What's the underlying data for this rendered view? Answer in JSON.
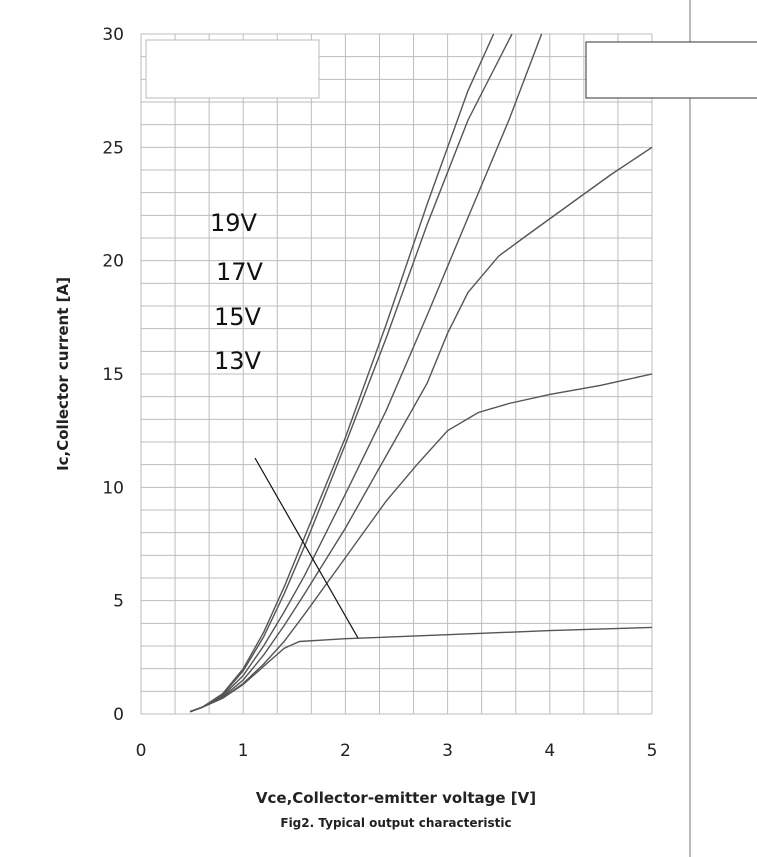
{
  "chart_data": {
    "type": "line",
    "title": "",
    "xlabel": "Vce,Collector-emitter voltage [V]",
    "ylabel": "Ic,Collector current [A]",
    "caption": "Fig2. Typical output characteristic",
    "xlim": [
      0,
      5
    ],
    "ylim": [
      0,
      30
    ],
    "x_ticks": [
      "0",
      "1",
      "2",
      "3",
      "4",
      "5"
    ],
    "y_ticks": [
      "0",
      "5",
      "10",
      "15",
      "20",
      "25",
      "30"
    ],
    "grid": true,
    "curve_labels": [
      "19V",
      "17V",
      "15V",
      "13V"
    ],
    "series": [
      {
        "values": [
          [
            0.48,
            0.1
          ],
          [
            0.6,
            0.3
          ],
          [
            0.8,
            0.9
          ],
          [
            1.0,
            2.0
          ],
          [
            1.2,
            3.6
          ],
          [
            1.4,
            5.6
          ],
          [
            1.6,
            7.8
          ],
          [
            2.0,
            12.2
          ],
          [
            2.4,
            17.2
          ],
          [
            2.8,
            22.5
          ],
          [
            3.2,
            27.5
          ],
          [
            3.45,
            30.0
          ]
        ]
      },
      {
        "values": [
          [
            0.48,
            0.1
          ],
          [
            0.6,
            0.3
          ],
          [
            0.8,
            0.85
          ],
          [
            1.0,
            1.9
          ],
          [
            1.2,
            3.4
          ],
          [
            1.4,
            5.3
          ],
          [
            1.6,
            7.4
          ],
          [
            2.0,
            11.9
          ],
          [
            2.4,
            16.6
          ],
          [
            2.8,
            21.6
          ],
          [
            3.2,
            26.2
          ],
          [
            3.63,
            30.0
          ]
        ]
      },
      {
        "values": [
          [
            0.48,
            0.1
          ],
          [
            0.6,
            0.3
          ],
          [
            0.8,
            0.8
          ],
          [
            1.0,
            1.7
          ],
          [
            1.2,
            3.0
          ],
          [
            1.4,
            4.5
          ],
          [
            1.6,
            6.1
          ],
          [
            2.0,
            9.7
          ],
          [
            2.4,
            13.4
          ],
          [
            2.8,
            17.6
          ],
          [
            3.2,
            21.9
          ],
          [
            3.6,
            26.2
          ],
          [
            3.92,
            30.0
          ]
        ]
      },
      {
        "values": [
          [
            0.48,
            0.1
          ],
          [
            0.6,
            0.3
          ],
          [
            0.8,
            0.75
          ],
          [
            1.0,
            1.5
          ],
          [
            1.2,
            2.6
          ],
          [
            1.4,
            3.9
          ],
          [
            1.6,
            5.3
          ],
          [
            2.0,
            8.2
          ],
          [
            2.4,
            11.4
          ],
          [
            2.8,
            14.6
          ],
          [
            3.0,
            16.8
          ],
          [
            3.2,
            18.6
          ],
          [
            3.5,
            20.2
          ],
          [
            3.8,
            21.2
          ],
          [
            4.2,
            22.5
          ],
          [
            4.6,
            23.8
          ],
          [
            5.0,
            25.0
          ]
        ]
      },
      {
        "values": [
          [
            0.48,
            0.1
          ],
          [
            0.6,
            0.3
          ],
          [
            0.8,
            0.7
          ],
          [
            1.0,
            1.35
          ],
          [
            1.2,
            2.2
          ],
          [
            1.4,
            3.2
          ],
          [
            1.6,
            4.4
          ],
          [
            2.0,
            6.9
          ],
          [
            2.4,
            9.4
          ],
          [
            2.7,
            11.0
          ],
          [
            3.0,
            12.5
          ],
          [
            3.3,
            13.3
          ],
          [
            3.6,
            13.7
          ],
          [
            4.0,
            14.1
          ],
          [
            4.5,
            14.5
          ],
          [
            5.0,
            15.0
          ]
        ]
      },
      {
        "values": [
          [
            0.48,
            0.1
          ],
          [
            0.6,
            0.3
          ],
          [
            0.8,
            0.7
          ],
          [
            1.0,
            1.3
          ],
          [
            1.2,
            2.1
          ],
          [
            1.4,
            2.9
          ],
          [
            1.55,
            3.2
          ],
          [
            1.8,
            3.27
          ],
          [
            2.0,
            3.32
          ],
          [
            3.0,
            3.5
          ],
          [
            4.0,
            3.68
          ],
          [
            5.0,
            3.82
          ]
        ]
      }
    ],
    "color": "#555555"
  }
}
